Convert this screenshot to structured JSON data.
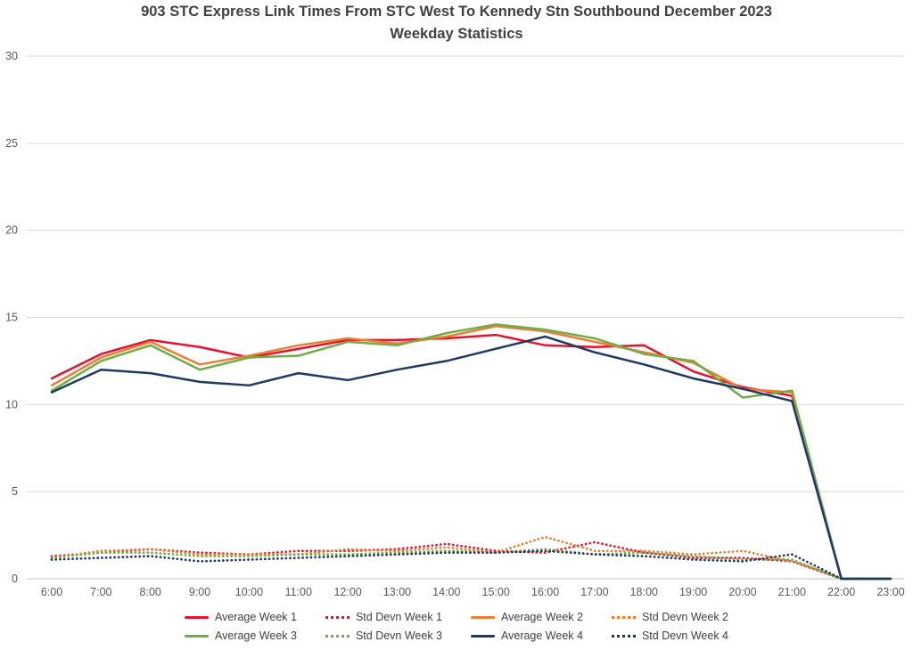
{
  "title": {
    "line1": "903 STC Express Link Times From STC West To Kennedy Stn Southbound December 2023",
    "line2": "Weekday Statistics"
  },
  "axis_colors": {
    "gridline": "#d9d9d9",
    "axis_line": "#bfbfbf",
    "tick_label": "#595959"
  },
  "chart_data": {
    "type": "line",
    "title": "903 STC Express Link Times From STC West To Kennedy Stn Southbound December 2023 Weekday Statistics",
    "xlabel": "",
    "ylabel": "",
    "ylim": [
      0,
      30
    ],
    "yticks": [
      0,
      5,
      10,
      15,
      20,
      25,
      30
    ],
    "grid": true,
    "legend_position": "bottom",
    "x": [
      "6:00",
      "7:00",
      "8:00",
      "9:00",
      "10:00",
      "11:00",
      "12:00",
      "13:00",
      "14:00",
      "15:00",
      "16:00",
      "17:00",
      "18:00",
      "19:00",
      "20:00",
      "21:00",
      "22:00",
      "23:00"
    ],
    "series": [
      {
        "name": "Average Week 1",
        "color": "#e8112d",
        "style": "solid",
        "values": [
          11.5,
          12.9,
          13.7,
          13.3,
          12.7,
          13.2,
          13.7,
          13.7,
          13.8,
          14.0,
          13.4,
          13.3,
          13.4,
          11.9,
          11.0,
          10.5,
          0,
          0
        ]
      },
      {
        "name": "Std Devn Week 1",
        "color": "#e8112d",
        "style": "dotted",
        "values": [
          1.3,
          1.5,
          1.7,
          1.5,
          1.4,
          1.6,
          1.6,
          1.7,
          2.0,
          1.6,
          1.5,
          2.1,
          1.5,
          1.2,
          1.2,
          1.0,
          0,
          0
        ]
      },
      {
        "name": "Average Week 2",
        "color": "#ed7d31",
        "style": "solid",
        "values": [
          11.1,
          12.7,
          13.6,
          12.3,
          12.8,
          13.4,
          13.8,
          13.5,
          13.9,
          14.5,
          14.2,
          13.6,
          13.0,
          12.4,
          10.9,
          10.7,
          0,
          0
        ]
      },
      {
        "name": "Std Devn Week 2",
        "color": "#ed7d31",
        "style": "dotted",
        "values": [
          1.2,
          1.6,
          1.7,
          1.4,
          1.4,
          1.4,
          1.7,
          1.6,
          1.8,
          1.5,
          2.4,
          1.6,
          1.6,
          1.4,
          1.6,
          1.0,
          0,
          0
        ]
      },
      {
        "name": "Average Week 3",
        "color": "#70ad47",
        "style": "solid",
        "values": [
          10.8,
          12.5,
          13.4,
          12.0,
          12.7,
          12.8,
          13.6,
          13.4,
          14.1,
          14.6,
          14.3,
          13.8,
          12.9,
          12.5,
          10.4,
          10.8,
          0,
          0
        ]
      },
      {
        "name": "Std Devn Week 3",
        "color": "#70ad47",
        "style": "dotted",
        "values": [
          1.2,
          1.5,
          1.5,
          1.3,
          1.3,
          1.4,
          1.4,
          1.5,
          1.6,
          1.5,
          1.7,
          1.4,
          1.5,
          1.3,
          1.1,
          1.1,
          0,
          0
        ]
      },
      {
        "name": "Average Week 4",
        "color": "#1f3864",
        "style": "solid",
        "values": [
          10.7,
          12.0,
          11.8,
          11.3,
          11.1,
          11.8,
          11.4,
          12.0,
          12.5,
          13.2,
          13.9,
          13.0,
          12.3,
          11.5,
          10.9,
          10.2,
          0,
          0
        ]
      },
      {
        "name": "Std Devn Week 4",
        "color": "#1f3864",
        "style": "dotted",
        "values": [
          1.1,
          1.2,
          1.3,
          1.0,
          1.1,
          1.2,
          1.3,
          1.4,
          1.5,
          1.5,
          1.6,
          1.4,
          1.3,
          1.1,
          1.0,
          1.4,
          0,
          0
        ]
      }
    ]
  }
}
